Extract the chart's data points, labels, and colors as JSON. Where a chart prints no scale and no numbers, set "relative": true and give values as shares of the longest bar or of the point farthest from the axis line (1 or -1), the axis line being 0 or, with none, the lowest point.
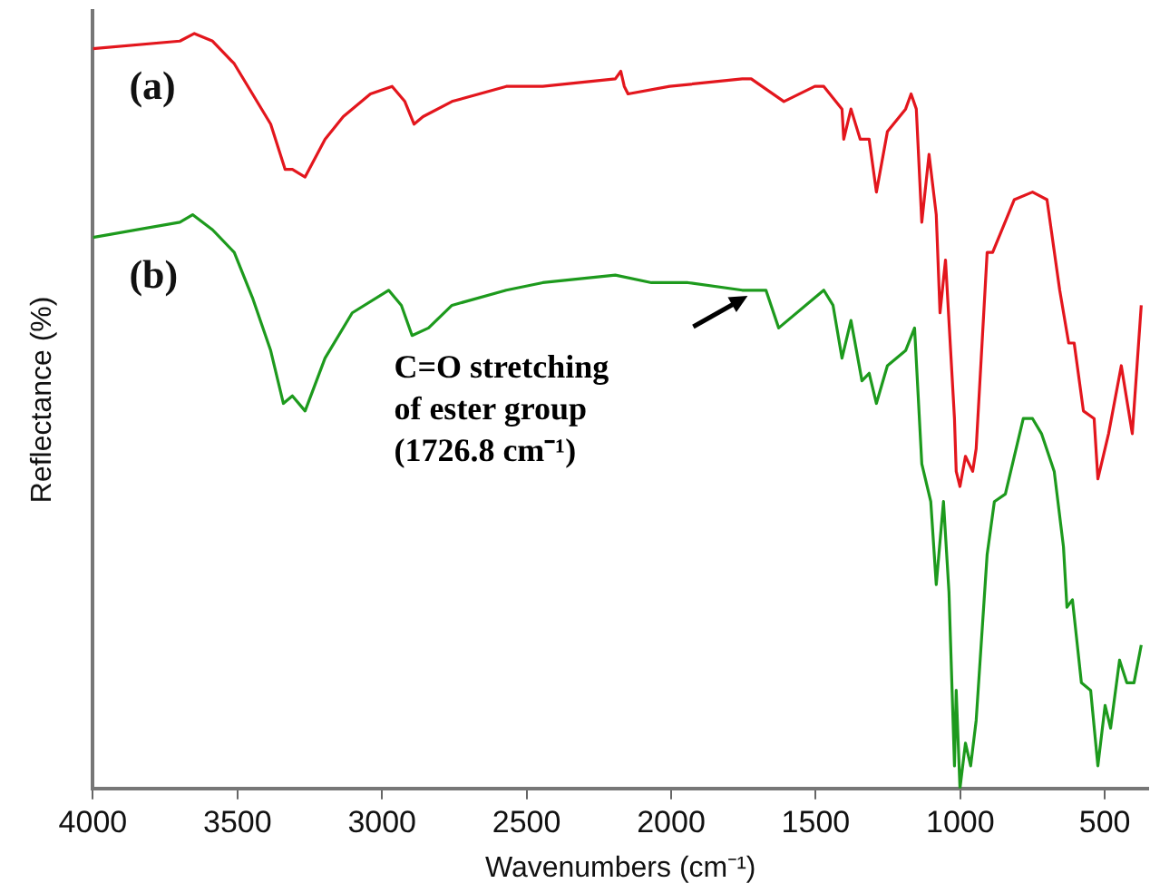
{
  "chart_data": {
    "type": "line",
    "relative": true,
    "xlabel": "Wavenumbers (cm⁻¹)",
    "ylabel": "Reflectance (%)",
    "xlim": [
      4000,
      350
    ],
    "xticks": [
      4000,
      3500,
      3000,
      2500,
      2000,
      1500,
      1000,
      500
    ],
    "grid": false,
    "legend": false,
    "tick_labels": "x",
    "marker": "none",
    "line_style": "solid",
    "series": [
      {
        "name": "(a)",
        "color": "#e3161d",
        "x": [
          4000,
          3699,
          3649,
          3586,
          3511,
          3448,
          3385,
          3335,
          3310,
          3266,
          3197,
          3134,
          3040,
          2965,
          2921,
          2889,
          2858,
          2758,
          2570,
          2444,
          2193,
          2174,
          2162,
          2149,
          2005,
          1754,
          1723,
          1610,
          1503,
          1472,
          1409,
          1403,
          1378,
          1346,
          1315,
          1290,
          1252,
          1189,
          1170,
          1152,
          1133,
          1108,
          1083,
          1070,
          1051,
          1020,
          1014,
          1001,
          982,
          957,
          945,
          907,
          888,
          813,
          750,
          700,
          656,
          625,
          606,
          574,
          537,
          524,
          487,
          443,
          405,
          374
        ],
        "values": [
          0.98,
          0.99,
          1.0,
          0.99,
          0.96,
          0.92,
          0.88,
          0.82,
          0.82,
          0.81,
          0.86,
          0.89,
          0.92,
          0.93,
          0.91,
          0.88,
          0.89,
          0.91,
          0.93,
          0.93,
          0.94,
          0.95,
          0.93,
          0.92,
          0.93,
          0.94,
          0.94,
          0.91,
          0.93,
          0.93,
          0.9,
          0.86,
          0.9,
          0.86,
          0.86,
          0.79,
          0.87,
          0.9,
          0.92,
          0.9,
          0.75,
          0.84,
          0.76,
          0.63,
          0.7,
          0.49,
          0.42,
          0.4,
          0.44,
          0.42,
          0.45,
          0.71,
          0.71,
          0.78,
          0.79,
          0.78,
          0.66,
          0.59,
          0.59,
          0.5,
          0.49,
          0.41,
          0.47,
          0.56,
          0.47,
          0.64
        ]
      },
      {
        "name": "(b)",
        "color": "#1d9a1d",
        "x": [
          4000,
          3699,
          3655,
          3586,
          3511,
          3448,
          3385,
          3341,
          3310,
          3266,
          3197,
          3103,
          2977,
          2933,
          2896,
          2839,
          2758,
          2570,
          2444,
          2193,
          2068,
          1942,
          1754,
          1704,
          1672,
          1628,
          1503,
          1472,
          1440,
          1409,
          1378,
          1340,
          1315,
          1290,
          1252,
          1189,
          1158,
          1133,
          1102,
          1083,
          1058,
          1039,
          1020,
          1014,
          1001,
          982,
          964,
          945,
          907,
          882,
          844,
          782,
          750,
          719,
          675,
          643,
          631,
          612,
          581,
          549,
          524,
          499,
          480,
          449,
          424,
          399,
          374
        ],
        "values": [
          0.73,
          0.75,
          0.76,
          0.74,
          0.71,
          0.65,
          0.58,
          0.51,
          0.52,
          0.5,
          0.57,
          0.63,
          0.66,
          0.64,
          0.6,
          0.61,
          0.64,
          0.66,
          0.67,
          0.68,
          0.67,
          0.67,
          0.66,
          0.66,
          0.66,
          0.61,
          0.65,
          0.66,
          0.64,
          0.57,
          0.62,
          0.54,
          0.55,
          0.51,
          0.56,
          0.58,
          0.61,
          0.43,
          0.38,
          0.27,
          0.38,
          0.26,
          0.03,
          0.13,
          0.0,
          0.06,
          0.03,
          0.09,
          0.31,
          0.38,
          0.39,
          0.49,
          0.49,
          0.47,
          0.42,
          0.32,
          0.24,
          0.25,
          0.14,
          0.13,
          0.03,
          0.11,
          0.08,
          0.17,
          0.14,
          0.14,
          0.19
        ]
      }
    ],
    "annotations": [
      "C=O stretching of ester group (1726.8 cm⁻¹)"
    ]
  }
}
